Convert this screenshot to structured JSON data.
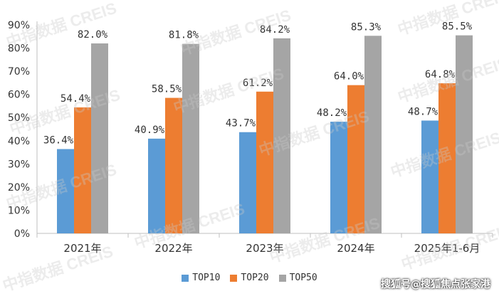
{
  "chart_data": {
    "type": "bar",
    "categories": [
      "2021年",
      "2022年",
      "2023年",
      "2024年",
      "2025年1-6月"
    ],
    "series": [
      {
        "name": "TOP10",
        "values": [
          36.4,
          40.9,
          43.7,
          48.2,
          48.7
        ],
        "labels": [
          "36.4%",
          "40.9%",
          "43.7%",
          "48.2%",
          "48.7%"
        ],
        "color": "#5B9BD5"
      },
      {
        "name": "TOP20",
        "values": [
          54.4,
          58.5,
          61.2,
          64.0,
          64.8
        ],
        "labels": [
          "54.4%",
          "58.5%",
          "61.2%",
          "64.0%",
          "64.8%"
        ],
        "color": "#ED7D31"
      },
      {
        "name": "TOP50",
        "values": [
          82.0,
          81.8,
          84.2,
          85.3,
          85.5
        ],
        "labels": [
          "82.0%",
          "81.8%",
          "84.2%",
          "85.3%",
          "85.5%"
        ],
        "color": "#A5A5A5"
      }
    ],
    "yticks": [
      "0%",
      "10%",
      "20%",
      "30%",
      "40%",
      "50%",
      "60%",
      "70%",
      "80%",
      "90%"
    ],
    "ylim": [
      0,
      90
    ],
    "grid": false,
    "legend_position": "bottom"
  },
  "watermark_text": "中指数据 CREIS",
  "source_text": "搜狐号@搜狐焦点张家港"
}
